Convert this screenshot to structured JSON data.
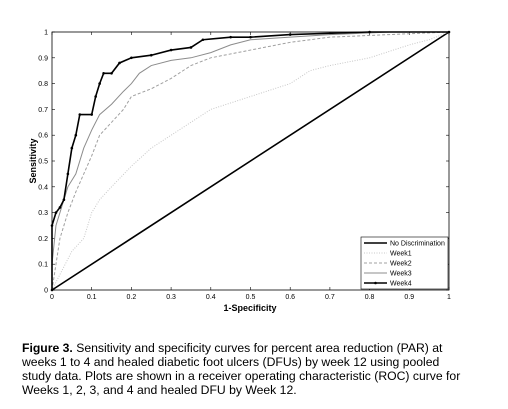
{
  "chart_data": {
    "type": "line",
    "xlabel": "1-Specificity",
    "ylabel": "Sensitivity",
    "xlim": [
      0,
      1
    ],
    "ylim": [
      0,
      1
    ],
    "xticks": [
      0,
      0.1,
      0.2,
      0.3,
      0.4,
      0.5,
      0.6,
      0.7,
      0.8,
      0.9,
      1
    ],
    "yticks": [
      0,
      0.1,
      0.2,
      0.3,
      0.4,
      0.5,
      0.6,
      0.7,
      0.8,
      0.9,
      1
    ],
    "legend": "lower right",
    "series": [
      {
        "name": "No Discrimination",
        "color": "#000000",
        "linestyle": "solid",
        "width": 1.6,
        "x": [
          0,
          1
        ],
        "values": [
          0,
          1
        ]
      },
      {
        "name": "Week1",
        "color": "#c8c8c8",
        "linestyle": "dotted",
        "width": 1,
        "x": [
          0,
          0.02,
          0.05,
          0.08,
          0.1,
          0.12,
          0.15,
          0.2,
          0.25,
          0.3,
          0.35,
          0.4,
          0.5,
          0.6,
          0.65,
          0.7,
          0.8,
          0.9,
          0.95,
          1
        ],
        "values": [
          0,
          0.06,
          0.15,
          0.2,
          0.3,
          0.35,
          0.4,
          0.48,
          0.55,
          0.6,
          0.65,
          0.7,
          0.75,
          0.8,
          0.85,
          0.87,
          0.9,
          0.95,
          0.97,
          1
        ]
      },
      {
        "name": "Week2",
        "color": "#a0a0a0",
        "linestyle": "dashed",
        "width": 1,
        "x": [
          0,
          0.01,
          0.02,
          0.04,
          0.06,
          0.08,
          0.1,
          0.12,
          0.15,
          0.18,
          0.2,
          0.25,
          0.3,
          0.35,
          0.4,
          0.5,
          0.6,
          0.7,
          0.85,
          1
        ],
        "values": [
          0,
          0.1,
          0.2,
          0.3,
          0.38,
          0.45,
          0.52,
          0.6,
          0.65,
          0.7,
          0.75,
          0.78,
          0.82,
          0.87,
          0.9,
          0.93,
          0.96,
          0.98,
          0.99,
          1
        ]
      },
      {
        "name": "Week3",
        "color": "#8c8c8c",
        "linestyle": "solid",
        "width": 1,
        "x": [
          0,
          0,
          0.01,
          0.02,
          0.04,
          0.06,
          0.08,
          0.1,
          0.12,
          0.15,
          0.18,
          0.2,
          0.22,
          0.25,
          0.3,
          0.35,
          0.4,
          0.45,
          0.5,
          0.6,
          0.7,
          0.85,
          1
        ],
        "values": [
          0,
          0.1,
          0.25,
          0.3,
          0.4,
          0.45,
          0.55,
          0.62,
          0.68,
          0.72,
          0.77,
          0.8,
          0.84,
          0.87,
          0.89,
          0.9,
          0.92,
          0.95,
          0.97,
          0.98,
          0.99,
          1,
          1
        ]
      },
      {
        "name": "Week4",
        "color": "#000000",
        "linestyle": "solid",
        "width": 1.6,
        "markers": true,
        "x": [
          0,
          0,
          0.01,
          0.02,
          0.03,
          0.04,
          0.05,
          0.06,
          0.07,
          0.1,
          0.11,
          0.12,
          0.13,
          0.15,
          0.17,
          0.2,
          0.25,
          0.3,
          0.35,
          0.38,
          0.45,
          0.5,
          0.6,
          0.8,
          1
        ],
        "values": [
          0,
          0.25,
          0.3,
          0.32,
          0.35,
          0.45,
          0.55,
          0.6,
          0.68,
          0.68,
          0.75,
          0.8,
          0.84,
          0.84,
          0.88,
          0.9,
          0.91,
          0.93,
          0.94,
          0.97,
          0.98,
          0.98,
          0.99,
          1,
          1
        ]
      }
    ]
  },
  "caption": {
    "label": "Figure 3.",
    "text": "Sensitivity and specificity curves for percent area reduction (PAR) at weeks 1 to 4 and healed diabetic foot ulcers (DFUs) by week 12 using pooled study data. Plots are shown in a receiver operating characteristic (ROC) curve for Weeks 1, 2, 3, and 4 and healed DFU by Week 12."
  }
}
